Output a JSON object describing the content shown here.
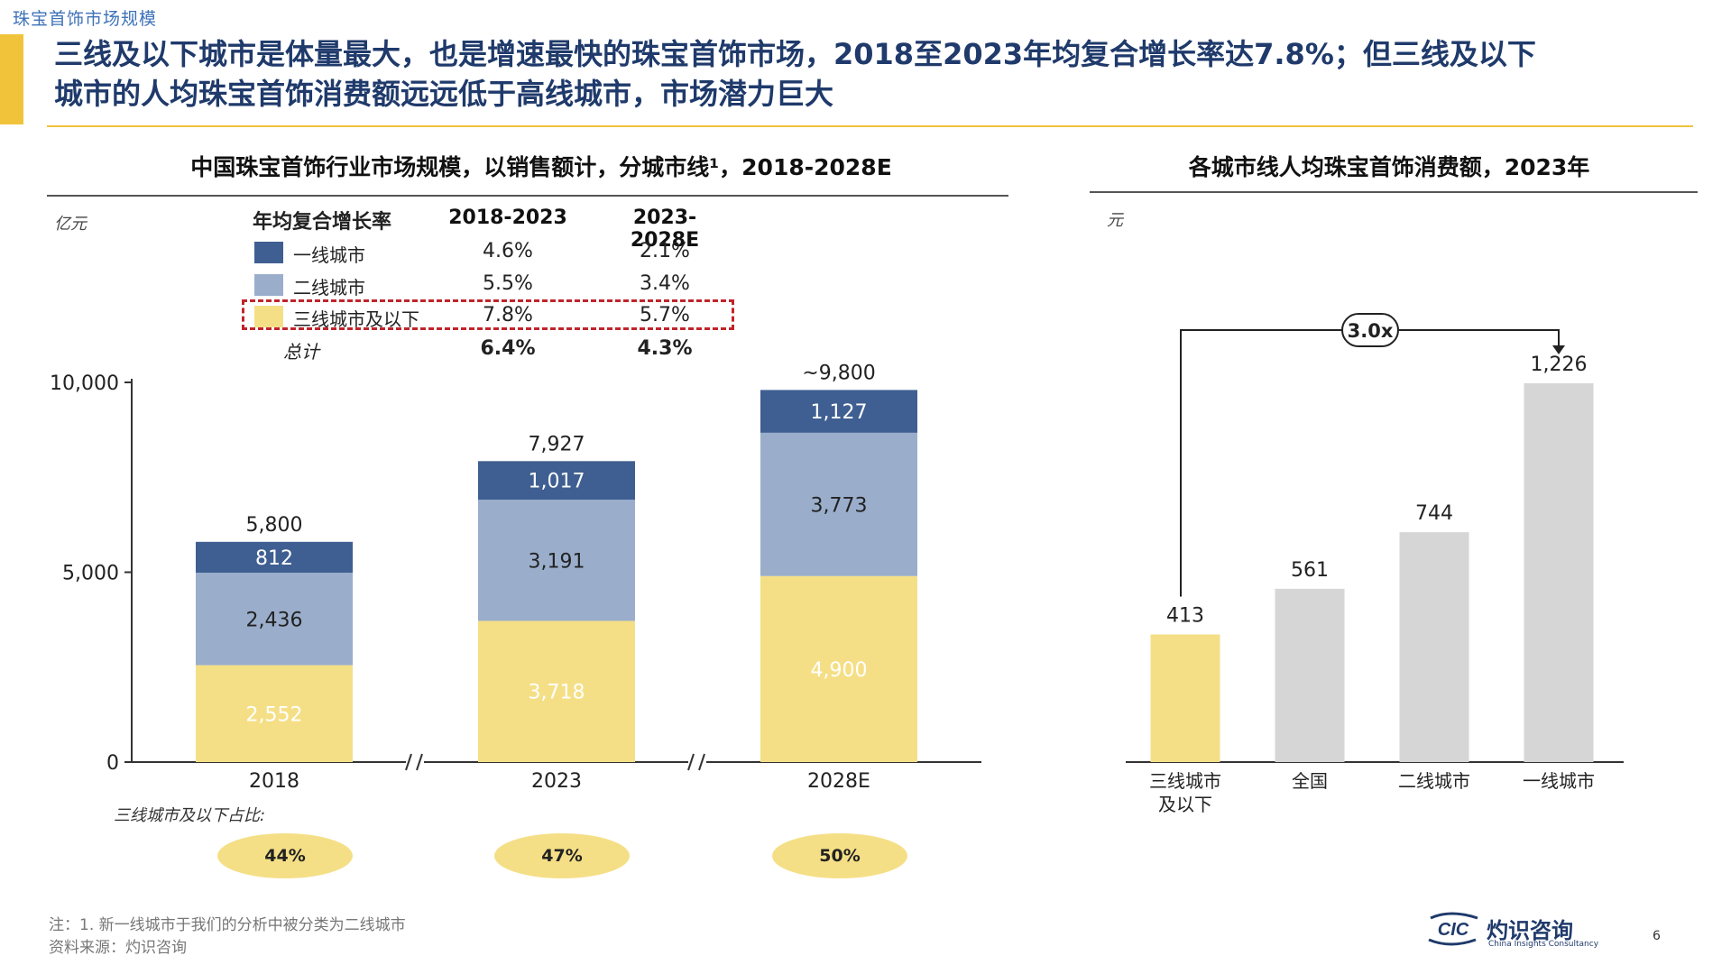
{
  "breadcrumb": "珠宝首饰市场规模",
  "headline": {
    "line1": "三线及以下城市是体量最大，也是增速最快的珠宝首饰市场，2018至2023年均复合增长率达7.8%；但三线及以下",
    "line2": "城市的人均珠宝首饰消费额远远低于高线城市，市场潜力巨大"
  },
  "left_chart_title": "中国珠宝首饰行业市场规模，以销售额计，分城市线¹，2018-2028E",
  "right_chart_title": "各城市线人均珠宝首饰消费额，2023年",
  "colors": {
    "tier1": "#3f5f92",
    "tier2": "#9aaecc",
    "tier3": "#f5df86",
    "national": "#d6d6d6",
    "accent": "#f1c33b",
    "highlight": "#c0242b"
  },
  "cagr_table": {
    "header": "年均复合增长率",
    "periods": [
      "2018-2023",
      "2023-2028E"
    ],
    "rows": [
      {
        "label": "一线城市",
        "values": [
          "4.6%",
          "2.1%"
        ],
        "color": "#3f5f92"
      },
      {
        "label": "二线城市",
        "values": [
          "5.5%",
          "3.4%"
        ],
        "color": "#9aaecc"
      },
      {
        "label": "三线城市及以下",
        "values": [
          "7.8%",
          "5.7%"
        ],
        "color": "#f5df86"
      },
      {
        "label": "总计",
        "values": [
          "6.4%",
          "4.3%"
        ],
        "color": null
      }
    ]
  },
  "share_label": "三线城市及以下占比:",
  "share_values": [
    "44%",
    "47%",
    "50%"
  ],
  "notes": {
    "line1": "注：1. 新一线城市于我们的分析中被分类为二线城市",
    "line2": "资料来源：灼识咨询"
  },
  "logo": {
    "mark": "CIC",
    "cn": "灼识咨询",
    "en": "China Insights Consultancy"
  },
  "page_number": "6",
  "chart_data": [
    {
      "type": "bar",
      "stacked": true,
      "unit": "亿元",
      "categories": [
        "2018",
        "2023",
        "2028E"
      ],
      "series": [
        {
          "name": "三线城市及以下",
          "values": [
            2552,
            3718,
            4900
          ]
        },
        {
          "name": "二线城市",
          "values": [
            2436,
            3191,
            3773
          ]
        },
        {
          "name": "一线城市",
          "values": [
            812,
            1017,
            1127
          ]
        }
      ],
      "value_labels": {
        "三线城市及以下": [
          "2,552",
          "3,718",
          "4,900"
        ],
        "二线城市": [
          "2,436",
          "3,191",
          "3,773"
        ],
        "一线城市": [
          "812",
          "1,017",
          "1,127"
        ]
      },
      "totals": [
        "5,800",
        "7,927",
        "~9,800"
      ],
      "y_ticks": [
        "0",
        "5,000",
        "10,000"
      ],
      "ylim": [
        0,
        10000
      ],
      "grid": false
    },
    {
      "type": "bar",
      "unit": "元",
      "categories": [
        "三线城市及以下",
        "全国",
        "二线城市",
        "一线城市"
      ],
      "values": [
        413,
        561,
        744,
        1226
      ],
      "value_labels": [
        "413",
        "561",
        "744",
        "1,226"
      ],
      "annotation": "3.0x",
      "ylim": [
        0,
        1300
      ],
      "grid": false
    }
  ]
}
